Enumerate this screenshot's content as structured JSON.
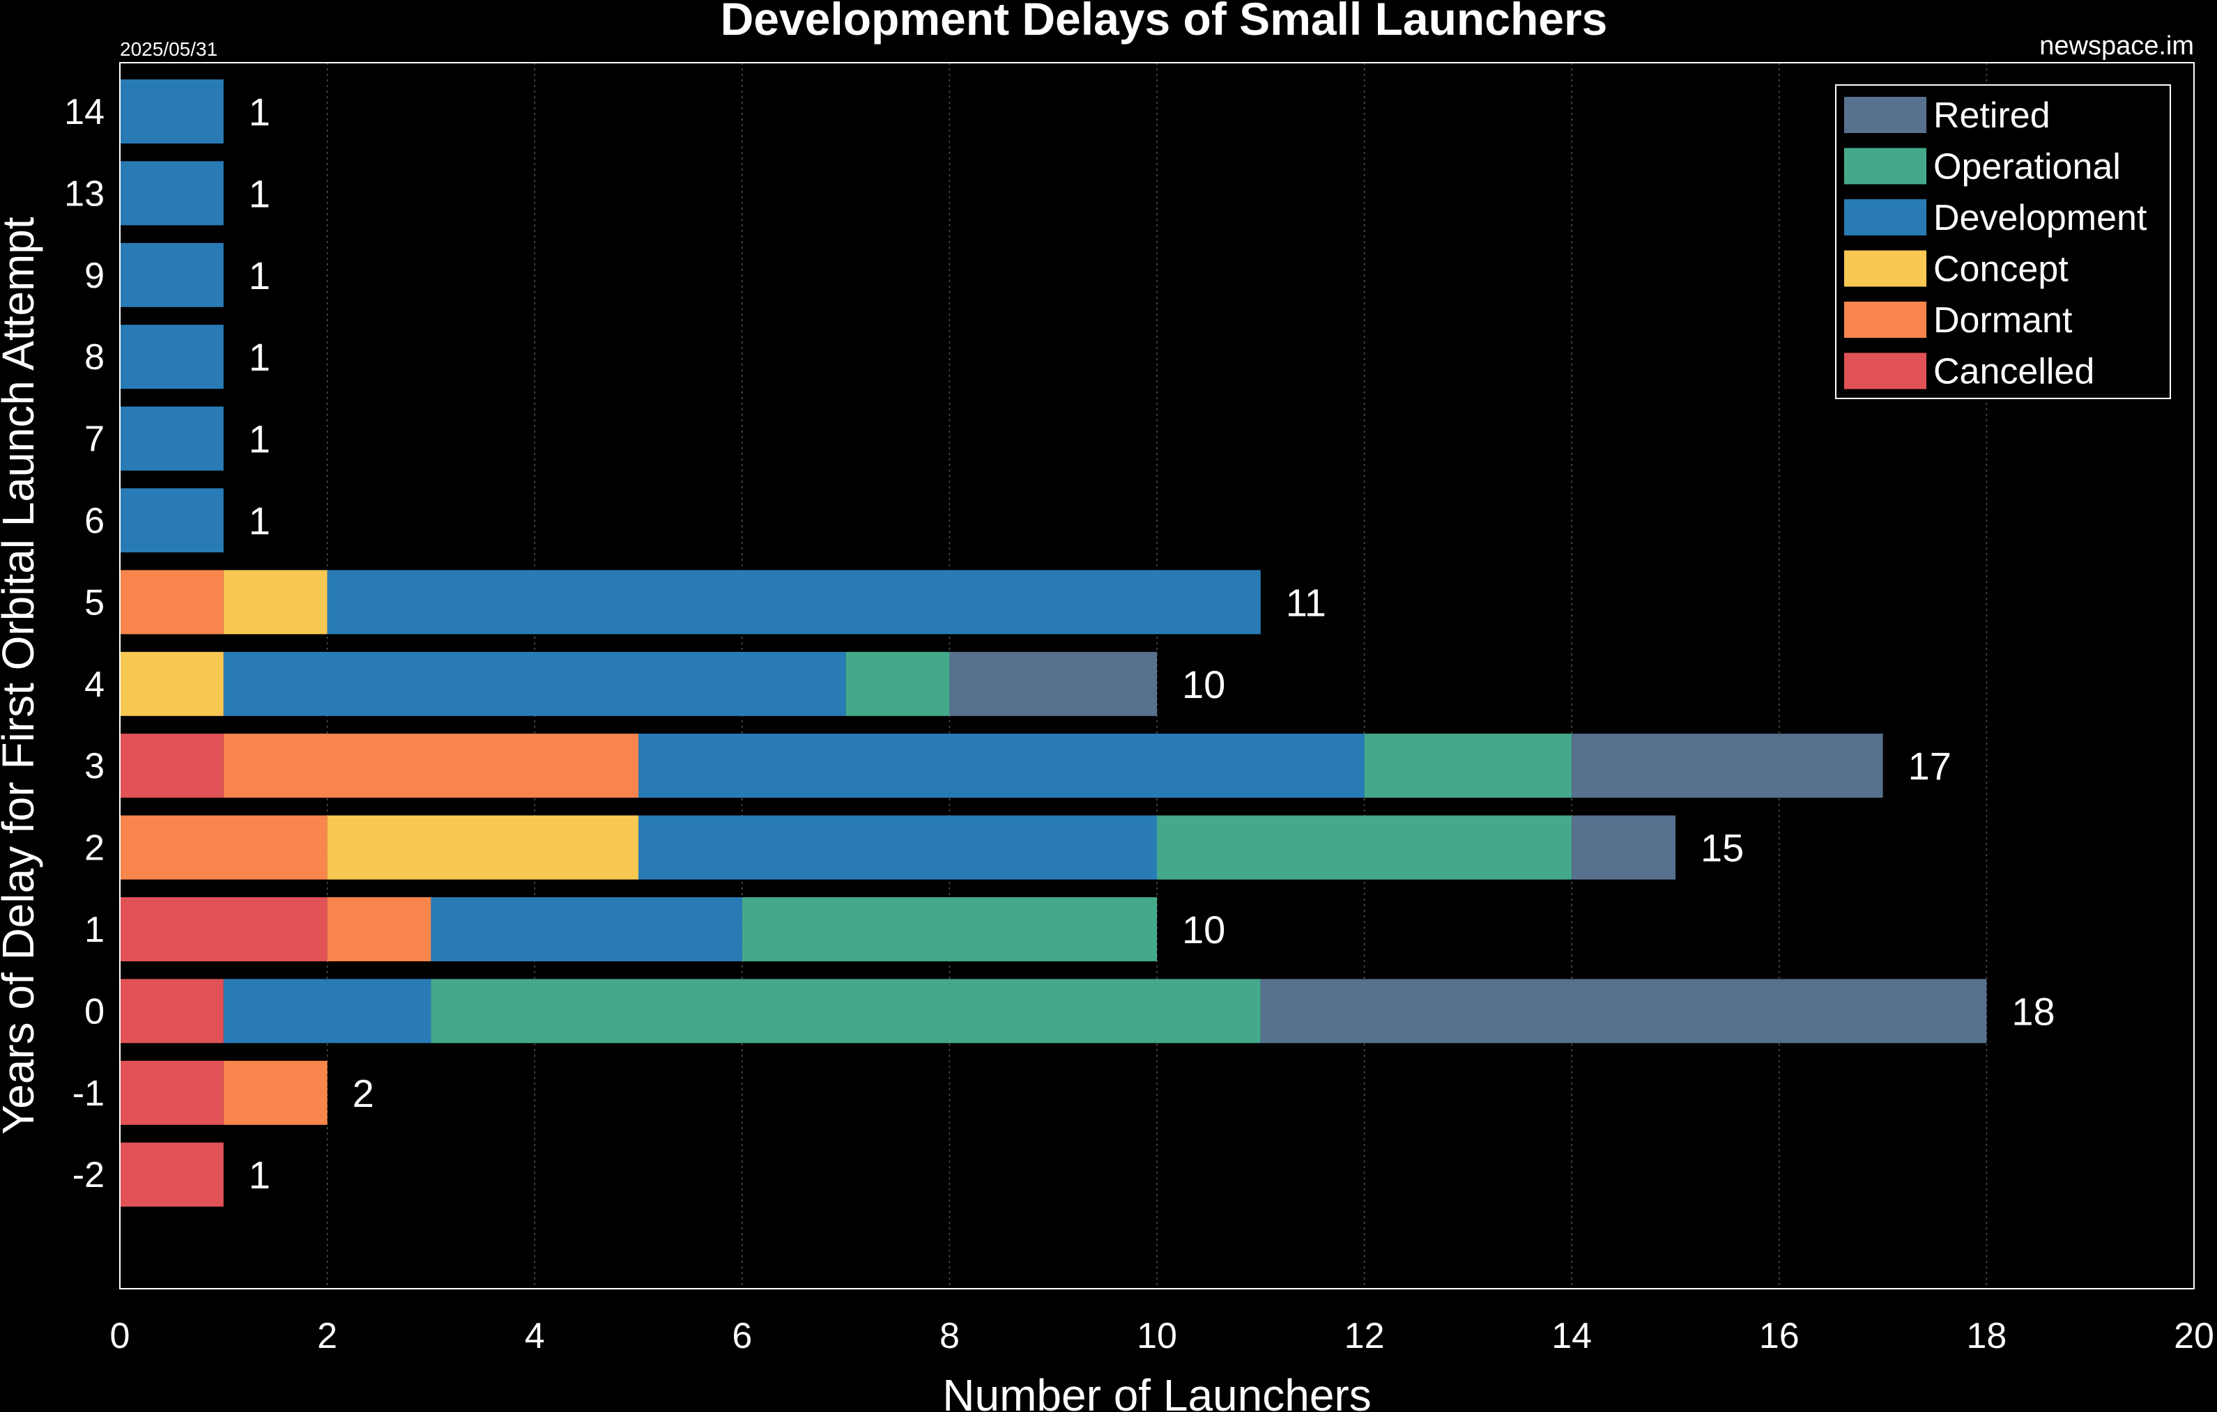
{
  "header": {
    "title": "Development Delays of Small Launchers",
    "date": "2025/05/31",
    "source": "newspace.im"
  },
  "chart_data": {
    "type": "bar",
    "orientation": "horizontal",
    "stacked": true,
    "title": "Development Delays of Small Launchers",
    "xlabel": "Number of Launchers",
    "ylabel": "Years of Delay for First Orbital Launch Attempt",
    "xlim": [
      0,
      20
    ],
    "xticks": [
      "0",
      "2",
      "4",
      "6",
      "8",
      "10",
      "12",
      "14",
      "16",
      "18",
      "20"
    ],
    "grid": "vertical",
    "legend_position": "top-right",
    "categories": [
      "-2",
      "-1",
      "0",
      "1",
      "2",
      "3",
      "4",
      "5",
      "6",
      "7",
      "8",
      "9",
      "13",
      "14"
    ],
    "series": [
      {
        "name": "Cancelled",
        "color": "#e05256",
        "values": [
          1,
          1,
          1,
          2,
          0,
          1,
          0,
          0,
          0,
          0,
          0,
          0,
          0,
          0
        ]
      },
      {
        "name": "Dormant",
        "color": "#f8854c",
        "values": [
          0,
          1,
          0,
          1,
          2,
          4,
          0,
          1,
          0,
          0,
          0,
          0,
          0,
          0
        ]
      },
      {
        "name": "Concept",
        "color": "#f9c853",
        "values": [
          0,
          0,
          0,
          0,
          3,
          0,
          1,
          1,
          0,
          0,
          0,
          0,
          0,
          0
        ]
      },
      {
        "name": "Development",
        "color": "#297bb6",
        "values": [
          0,
          0,
          2,
          3,
          5,
          7,
          6,
          9,
          1,
          1,
          1,
          1,
          1,
          1
        ]
      },
      {
        "name": "Operational",
        "color": "#44a98b",
        "values": [
          0,
          0,
          8,
          4,
          4,
          2,
          1,
          0,
          0,
          0,
          0,
          0,
          0,
          0
        ]
      },
      {
        "name": "Retired",
        "color": "#58718f",
        "values": [
          0,
          0,
          7,
          0,
          1,
          3,
          2,
          0,
          0,
          0,
          0,
          0,
          0,
          0
        ]
      }
    ],
    "totals": [
      "1",
      "2",
      "18",
      "10",
      "15",
      "17",
      "10",
      "11",
      "1",
      "1",
      "1",
      "1",
      "1",
      "1"
    ],
    "legend_order": [
      "Retired",
      "Operational",
      "Development",
      "Concept",
      "Dormant",
      "Cancelled"
    ]
  }
}
